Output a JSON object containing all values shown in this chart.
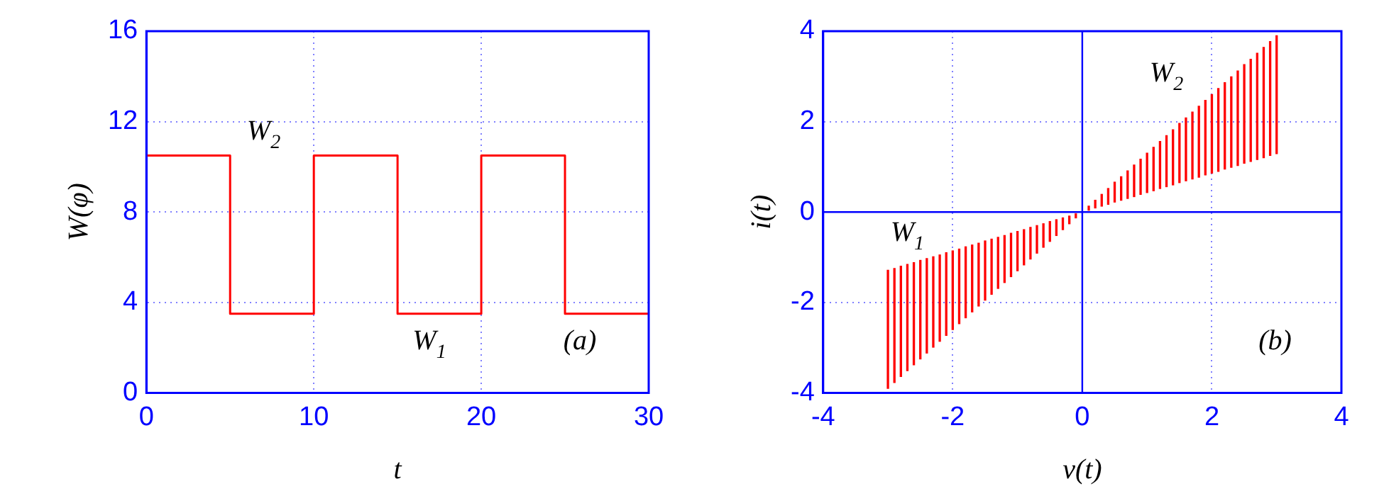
{
  "chart_data": [
    {
      "type": "step",
      "xlabel": "t",
      "ylabel": "W(φ)",
      "x": [
        0,
        5,
        10,
        15,
        20,
        25,
        30
      ],
      "values": [
        10.5,
        3.5,
        10.5,
        3.5,
        10.5,
        3.5,
        3.5
      ],
      "color": "#ff0000",
      "xlim": [
        0,
        30
      ],
      "xticks": [
        0,
        10,
        20,
        30
      ],
      "ylim": [
        0,
        16
      ],
      "yticks": [
        0,
        4,
        8,
        12,
        16
      ],
      "grid": true,
      "annotations": [
        "W$_{2}$",
        "W$_{1}$",
        "(a)"
      ]
    },
    {
      "type": "bar",
      "xlabel": "v(t)",
      "ylabel": "i(t)",
      "color": "#ff0000",
      "x": [
        -3,
        -2.9,
        -2.8,
        -2.7,
        -2.6,
        -2.5,
        -2.4,
        -2.3,
        -2.2,
        -2.1,
        -2,
        -1.9,
        -1.8,
        -1.7,
        -1.6,
        -1.5,
        -1.4,
        -1.3,
        -1.2,
        -1.1,
        -1,
        -0.9,
        -0.8,
        -0.7,
        -0.6,
        -0.5,
        -0.4,
        -0.3,
        -0.2,
        -0.1,
        0,
        0.1,
        0.2,
        0.3,
        0.4,
        0.5,
        0.6,
        0.7,
        0.8,
        0.9,
        1,
        1.1,
        1.2,
        1.3,
        1.4,
        1.5,
        1.6,
        1.7,
        1.8,
        1.9,
        2,
        2.1,
        2.2,
        2.3,
        2.4,
        2.5,
        2.6,
        2.7,
        2.8,
        2.9,
        3
      ],
      "base": [
        -3.9,
        -3.77,
        -3.64,
        -3.51,
        -3.38,
        -3.25,
        -3.12,
        -2.99,
        -2.86,
        -2.73,
        -2.6,
        -2.47,
        -2.34,
        -2.21,
        -2.08,
        -1.95,
        -1.82,
        -1.69,
        -1.56,
        -1.43,
        -1.3,
        -1.17,
        -1.04,
        -0.91,
        -0.78,
        -0.65,
        -0.52,
        -0.39,
        -0.26,
        -0.13,
        0,
        0.04,
        0.09,
        0.13,
        0.17,
        0.22,
        0.26,
        0.3,
        0.34,
        0.39,
        0.43,
        0.47,
        0.52,
        0.56,
        0.6,
        0.65,
        0.69,
        0.73,
        0.77,
        0.82,
        0.86,
        0.9,
        0.95,
        0.99,
        1.03,
        1.08,
        1.12,
        1.16,
        1.2,
        1.25,
        1.29
      ],
      "values": [
        2.61,
        2.52,
        2.44,
        2.35,
        2.26,
        2.18,
        2.09,
        2.0,
        1.91,
        1.83,
        1.74,
        1.65,
        1.57,
        1.48,
        1.39,
        1.31,
        1.22,
        1.13,
        1.04,
        0.96,
        0.87,
        0.78,
        0.7,
        0.61,
        0.52,
        0.44,
        0.35,
        0.26,
        0.17,
        0.09,
        0,
        0.09,
        0.17,
        0.26,
        0.35,
        0.44,
        0.52,
        0.61,
        0.7,
        0.78,
        0.87,
        0.96,
        1.04,
        1.13,
        1.22,
        1.31,
        1.39,
        1.48,
        1.57,
        1.65,
        1.74,
        1.83,
        1.91,
        2.0,
        2.09,
        2.18,
        2.26,
        2.35,
        2.44,
        2.52,
        2.61
      ],
      "xlim": [
        -4,
        4
      ],
      "xticks": [
        -4,
        -2,
        0,
        2,
        4
      ],
      "ylim": [
        -4,
        4
      ],
      "yticks": [
        -4,
        -2,
        0,
        2,
        4
      ],
      "grid": true,
      "annotations": [
        "W$_{2}$",
        "W$_{1}$",
        "(b)"
      ]
    }
  ]
}
